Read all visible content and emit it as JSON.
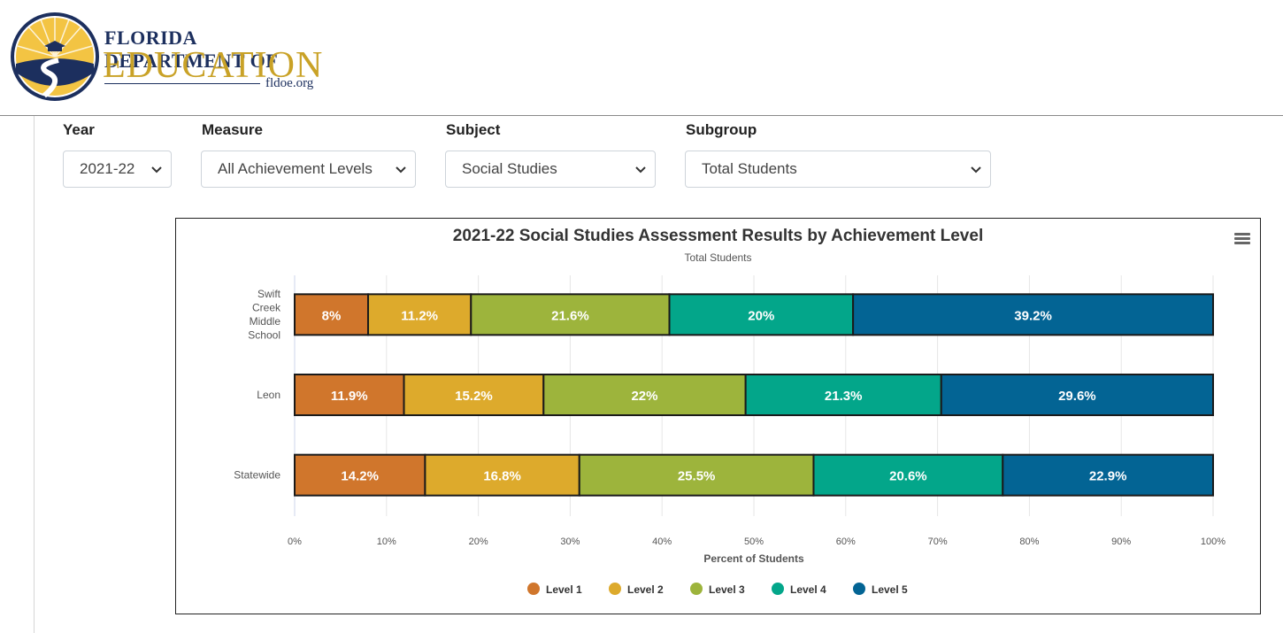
{
  "logo": {
    "line1": "FLORIDA DEPARTMENT OF",
    "line2": "EDUCATION",
    "line3": "fldoe.org"
  },
  "filters": {
    "year": {
      "label": "Year",
      "value": "2021-22"
    },
    "measure": {
      "label": "Measure",
      "value": "All Achievement Levels"
    },
    "subject": {
      "label": "Subject",
      "value": "Social Studies"
    },
    "subgroup": {
      "label": "Subgroup",
      "value": "Total Students"
    }
  },
  "colors": {
    "level1": "#d0762c",
    "level2": "#ddaa2c",
    "level3": "#9db43c",
    "level4": "#03a68a",
    "level5": "#036494"
  },
  "chart_data": {
    "type": "bar",
    "orientation": "horizontal",
    "stacked": true,
    "title": "2021-22 Social Studies Assessment Results by Achievement Level",
    "subtitle": "Total Students",
    "xlabel": "Percent of Students",
    "ylabel": "",
    "xlim": [
      0,
      100
    ],
    "xticks": [
      "0%",
      "10%",
      "20%",
      "30%",
      "40%",
      "50%",
      "60%",
      "70%",
      "80%",
      "90%",
      "100%"
    ],
    "categories": [
      "Swift Creek Middle School",
      "Leon",
      "Statewide"
    ],
    "series": [
      {
        "name": "Level 1",
        "values": [
          8,
          11.9,
          14.2
        ],
        "labels": [
          "8%",
          "11.9%",
          "14.2%"
        ]
      },
      {
        "name": "Level 2",
        "values": [
          11.2,
          15.2,
          16.8
        ],
        "labels": [
          "11.2%",
          "15.2%",
          "16.8%"
        ]
      },
      {
        "name": "Level 3",
        "values": [
          21.6,
          22,
          25.5
        ],
        "labels": [
          "21.6%",
          "22%",
          "25.5%"
        ]
      },
      {
        "name": "Level 4",
        "values": [
          20,
          21.3,
          20.6
        ],
        "labels": [
          "20%",
          "21.3%",
          "20.6%"
        ]
      },
      {
        "name": "Level 5",
        "values": [
          39.2,
          29.6,
          22.9
        ],
        "labels": [
          "39.2%",
          "29.6%",
          "22.9%"
        ]
      }
    ],
    "grid": true,
    "legend_position": "bottom-center"
  }
}
